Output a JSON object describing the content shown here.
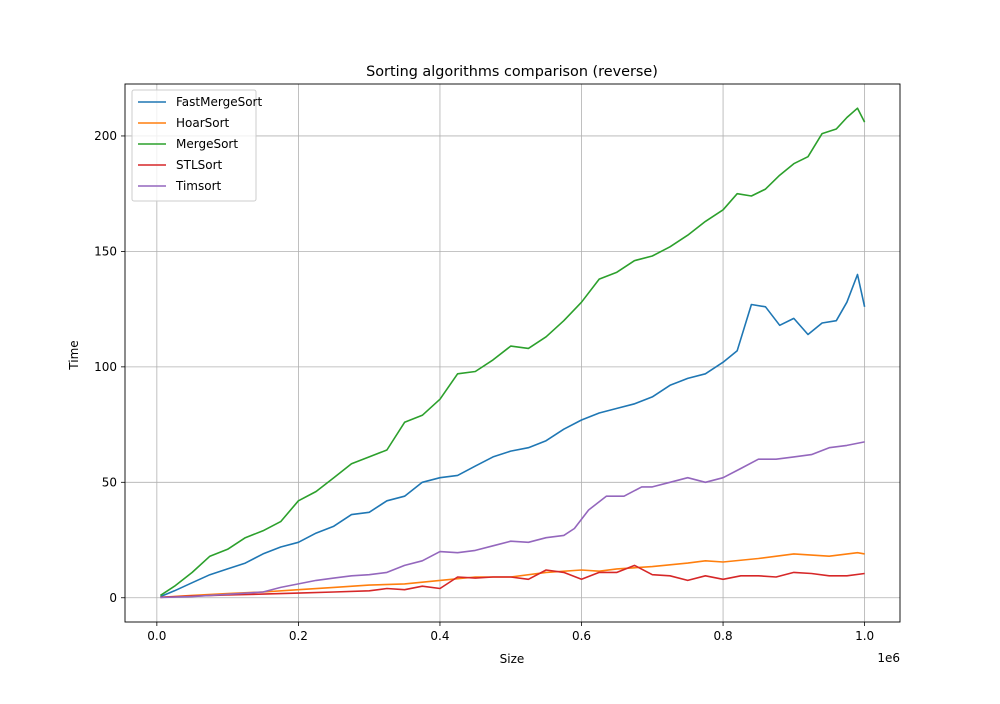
{
  "chart_data": {
    "type": "line",
    "title": "Sorting algorithms comparison (reverse)",
    "xlabel": "Size",
    "ylabel": "Time",
    "x_offset_label": "1e6",
    "xlim": [
      -0.045,
      1.05
    ],
    "ylim": [
      -10.5,
      222.5
    ],
    "x_ticks": [
      0.0,
      0.2,
      0.4,
      0.6,
      0.8,
      1.0
    ],
    "x_tick_labels": [
      "0.0",
      "0.2",
      "0.4",
      "0.6",
      "0.8",
      "1.0"
    ],
    "y_ticks": [
      0,
      50,
      100,
      150,
      200
    ],
    "y_tick_labels": [
      "0",
      "50",
      "100",
      "150",
      "200"
    ],
    "grid": true,
    "legend_position": "top-left",
    "series": [
      {
        "name": "FastMergeSort",
        "color": "#1f77b4",
        "x": [
          0.005,
          0.025,
          0.05,
          0.075,
          0.1,
          0.125,
          0.15,
          0.175,
          0.2,
          0.225,
          0.25,
          0.275,
          0.3,
          0.325,
          0.35,
          0.375,
          0.4,
          0.425,
          0.45,
          0.475,
          0.5,
          0.525,
          0.55,
          0.575,
          0.6,
          0.625,
          0.65,
          0.675,
          0.7,
          0.725,
          0.75,
          0.775,
          0.8,
          0.82,
          0.84,
          0.86,
          0.88,
          0.9,
          0.92,
          0.94,
          0.96,
          0.975,
          0.99,
          1.0
        ],
        "y": [
          0.5,
          3,
          6.5,
          10,
          12.5,
          15,
          19,
          22,
          24,
          28,
          31,
          36,
          37,
          42,
          44,
          50,
          52,
          53,
          57,
          61,
          63.5,
          65,
          68,
          73,
          77,
          80,
          82,
          84,
          87,
          92,
          95,
          97,
          102,
          107,
          127,
          126,
          118,
          121,
          114,
          119,
          120,
          128,
          140,
          126
        ]
      },
      {
        "name": "HoarSort",
        "color": "#ff7f0e",
        "x": [
          0.005,
          0.05,
          0.1,
          0.15,
          0.2,
          0.25,
          0.3,
          0.35,
          0.4,
          0.45,
          0.5,
          0.55,
          0.6,
          0.625,
          0.65,
          0.7,
          0.75,
          0.775,
          0.8,
          0.85,
          0.9,
          0.95,
          0.99,
          1.0
        ],
        "y": [
          0.2,
          1,
          1.8,
          2.5,
          3.5,
          4.5,
          5.5,
          6,
          7.5,
          9,
          9,
          11,
          12,
          11.5,
          12.5,
          13.5,
          15,
          16,
          15.5,
          17,
          19,
          18,
          19.5,
          19
        ]
      },
      {
        "name": "MergeSort",
        "color": "#2ca02c",
        "x": [
          0.005,
          0.025,
          0.05,
          0.075,
          0.1,
          0.125,
          0.15,
          0.175,
          0.2,
          0.225,
          0.25,
          0.275,
          0.3,
          0.325,
          0.35,
          0.375,
          0.4,
          0.425,
          0.45,
          0.475,
          0.5,
          0.525,
          0.55,
          0.575,
          0.6,
          0.625,
          0.65,
          0.675,
          0.7,
          0.725,
          0.75,
          0.775,
          0.8,
          0.82,
          0.84,
          0.86,
          0.88,
          0.9,
          0.92,
          0.94,
          0.96,
          0.975,
          0.99,
          1.0
        ],
        "y": [
          1,
          5,
          11,
          18,
          21,
          26,
          29,
          33,
          42,
          46,
          52,
          58,
          61,
          64,
          76,
          79,
          86,
          97,
          98,
          103,
          109,
          108,
          113,
          120,
          128,
          138,
          141,
          146,
          148,
          152,
          157,
          163,
          168,
          175,
          174,
          177,
          183,
          188,
          191,
          201,
          203,
          208,
          212,
          206
        ]
      },
      {
        "name": "STLSort",
        "color": "#d62728",
        "x": [
          0.005,
          0.05,
          0.1,
          0.15,
          0.2,
          0.25,
          0.3,
          0.325,
          0.35,
          0.375,
          0.4,
          0.425,
          0.45,
          0.475,
          0.5,
          0.525,
          0.55,
          0.575,
          0.6,
          0.625,
          0.65,
          0.675,
          0.7,
          0.725,
          0.75,
          0.775,
          0.8,
          0.825,
          0.85,
          0.875,
          0.9,
          0.925,
          0.95,
          0.975,
          1.0
        ],
        "y": [
          0.2,
          0.7,
          1.2,
          1.6,
          2,
          2.5,
          3,
          4,
          3.5,
          5,
          4,
          9,
          8.5,
          9,
          9,
          8,
          12,
          11,
          8,
          11,
          11,
          14,
          10,
          9.5,
          7.5,
          9.5,
          8,
          9.5,
          9.5,
          9,
          11,
          10.5,
          9.5,
          9.5,
          10.5
        ]
      },
      {
        "name": "Timsort",
        "color": "#9467bd",
        "x": [
          0.005,
          0.05,
          0.1,
          0.15,
          0.175,
          0.2,
          0.225,
          0.25,
          0.275,
          0.3,
          0.325,
          0.35,
          0.375,
          0.4,
          0.425,
          0.45,
          0.475,
          0.5,
          0.525,
          0.55,
          0.575,
          0.59,
          0.61,
          0.635,
          0.66,
          0.685,
          0.7,
          0.725,
          0.75,
          0.775,
          0.8,
          0.825,
          0.85,
          0.875,
          0.9,
          0.925,
          0.95,
          0.975,
          1.0
        ],
        "y": [
          0.1,
          0.5,
          1.5,
          2.5,
          4.5,
          6,
          7.5,
          8.5,
          9.5,
          10,
          11,
          14,
          16,
          20,
          19.5,
          20.5,
          22.5,
          24.5,
          24,
          26,
          27,
          30,
          38,
          44,
          44,
          48,
          48,
          50,
          52,
          50,
          52,
          56,
          60,
          60,
          61,
          62,
          65,
          66,
          67.5
        ]
      }
    ]
  }
}
